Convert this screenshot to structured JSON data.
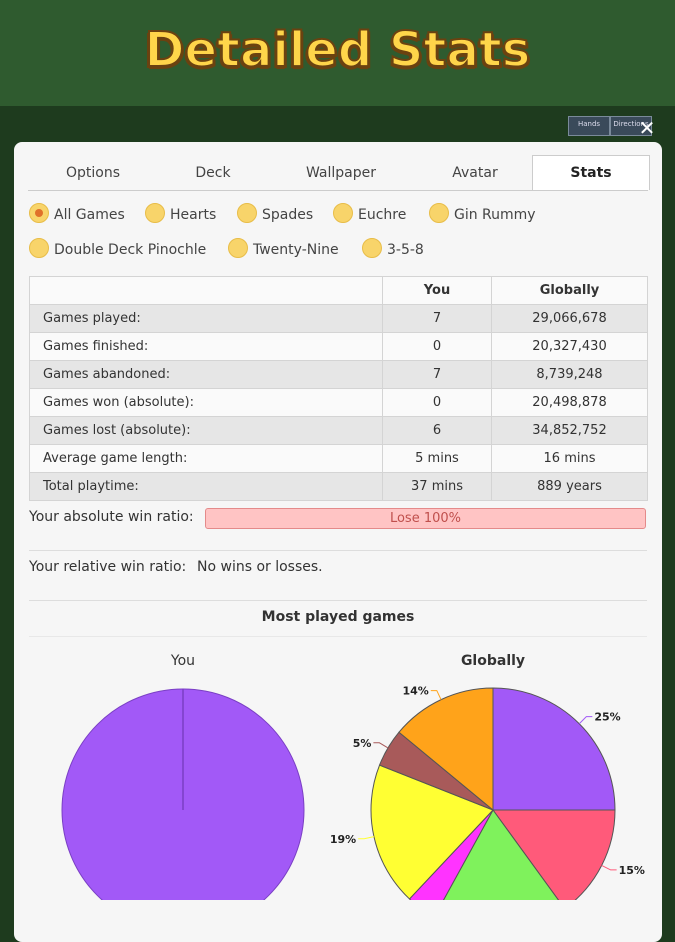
{
  "header": {
    "title": "Detailed Stats"
  },
  "background_tabs": [
    "Hands",
    "Directions"
  ],
  "tabs": [
    "Options",
    "Deck",
    "Wallpaper",
    "Avatar",
    "Stats"
  ],
  "active_tab": 4,
  "game_filters": {
    "options": [
      "All Games",
      "Hearts",
      "Spades",
      "Euchre",
      "Gin Rummy",
      "Double Deck Pinochle",
      "Twenty-Nine",
      "3-5-8"
    ],
    "selected": 0
  },
  "stats_table": {
    "columns": [
      "You",
      "Globally"
    ],
    "rows": [
      {
        "label": "Games played:",
        "you": "7",
        "globally": "29,066,678"
      },
      {
        "label": "Games finished:",
        "you": "0",
        "globally": "20,327,430"
      },
      {
        "label": "Games abandoned:",
        "you": "7",
        "globally": "8,739,248"
      },
      {
        "label": "Games won (absolute):",
        "you": "0",
        "globally": "20,498,878"
      },
      {
        "label": "Games lost (absolute):",
        "you": "6",
        "globally": "34,852,752"
      },
      {
        "label": "Average game length:",
        "you": "5 mins",
        "globally": "16 mins"
      },
      {
        "label": "Total playtime:",
        "you": "37 mins",
        "globally": "889 years"
      }
    ]
  },
  "absolute_win_ratio": {
    "label": "Your absolute win ratio:",
    "value": "Lose 100%"
  },
  "relative_win_ratio": {
    "label": "Your relative win ratio:",
    "value": "No wins or losses."
  },
  "most_played": {
    "title": "Most played games",
    "pies": [
      {
        "type": "pie",
        "title": "You",
        "values": [
          100
        ],
        "colors": [
          "#a259f7"
        ]
      },
      {
        "type": "pie",
        "title": "Globally",
        "values": [
          25,
          15,
          18,
          4,
          19,
          5,
          14
        ],
        "value_labels": [
          "25%",
          "15%",
          null,
          null,
          "19%",
          "5%",
          "14%"
        ],
        "colors": [
          "#a259f7",
          "#ff5a7a",
          "#7ff25c",
          "#ff33ff",
          "#ffff33",
          "#a85a5a",
          "#ffa31a"
        ]
      }
    ]
  }
}
